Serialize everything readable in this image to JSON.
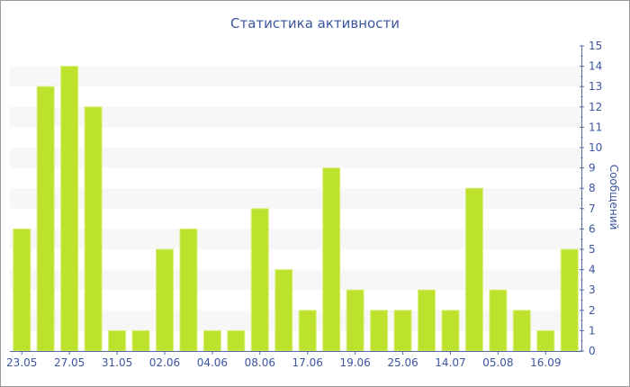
{
  "chart_data": {
    "type": "bar",
    "title": "Статистика активности",
    "xlabel": "",
    "ylabel": "Сообщений",
    "ylim": [
      0,
      15
    ],
    "y_ticks": [
      0,
      1,
      2,
      3,
      4,
      5,
      6,
      7,
      8,
      9,
      10,
      11,
      12,
      13,
      14,
      15
    ],
    "y_axis_side": "right",
    "grid": "alternating horizontal bands",
    "x_tick_labels": [
      "23.05",
      "",
      "27.05",
      "",
      "31.05",
      "",
      "02.06",
      "",
      "04.06",
      "",
      "08.06",
      "",
      "17.06",
      "",
      "19.06",
      "",
      "25.06",
      "",
      "14.07",
      "",
      "05.08",
      "",
      "16.09",
      ""
    ],
    "values": [
      6,
      13,
      14,
      12,
      1,
      1,
      5,
      6,
      1,
      1,
      7,
      4,
      2,
      9,
      3,
      2,
      2,
      3,
      2,
      8,
      3,
      2,
      1,
      5
    ],
    "colors": {
      "bar": "#bde22e",
      "bar_edge": "#d8ef7a",
      "text": "#3b55a0",
      "axis": "#5468a8",
      "band": "#f7f7f7"
    }
  }
}
